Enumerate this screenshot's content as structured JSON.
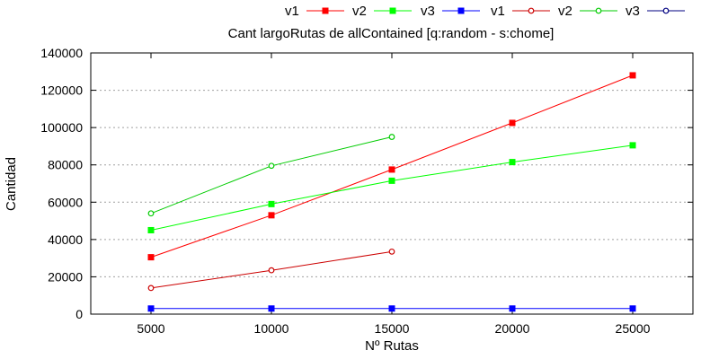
{
  "chart_data": {
    "type": "line",
    "title": "Cant largoRutas de allContained [q:random - s:chome]",
    "xlabel": "Nº Rutas",
    "ylabel": "Cantidad",
    "xlim": [
      2500,
      27500
    ],
    "ylim": [
      0,
      140000
    ],
    "x_ticks": [
      "5000",
      "10000",
      "15000",
      "20000",
      "25000"
    ],
    "y_ticks": [
      "0",
      "20000",
      "40000",
      "60000",
      "80000",
      "100000",
      "120000",
      "140000"
    ],
    "grid": "dotted horizontal",
    "legend_position": "top-right",
    "series": [
      {
        "name": "v1",
        "color": "#ff0000",
        "marker": "filled-square",
        "x": [
          5000,
          10000,
          15000,
          20000,
          25000
        ],
        "values": [
          30500,
          53000,
          77500,
          102500,
          128000
        ]
      },
      {
        "name": "v2",
        "color": "#00ff00",
        "marker": "filled-square",
        "x": [
          5000,
          10000,
          15000,
          20000,
          25000
        ],
        "values": [
          45000,
          59000,
          71500,
          81500,
          90500
        ]
      },
      {
        "name": "v3",
        "color": "#0000ff",
        "marker": "filled-square",
        "x": [
          5000,
          10000,
          15000,
          20000,
          25000
        ],
        "values": [
          3000,
          3000,
          3000,
          3000,
          3000
        ]
      },
      {
        "name": "v1",
        "color": "#cc0000",
        "marker": "open-circle",
        "x": [
          5000,
          10000,
          15000
        ],
        "values": [
          14000,
          23500,
          33500
        ]
      },
      {
        "name": "v2",
        "color": "#00cc00",
        "marker": "open-circle",
        "x": [
          5000,
          10000,
          15000
        ],
        "values": [
          54000,
          79500,
          95000
        ]
      },
      {
        "name": "v3",
        "color": "#000080",
        "marker": "open-circle",
        "x": [],
        "values": []
      }
    ]
  }
}
